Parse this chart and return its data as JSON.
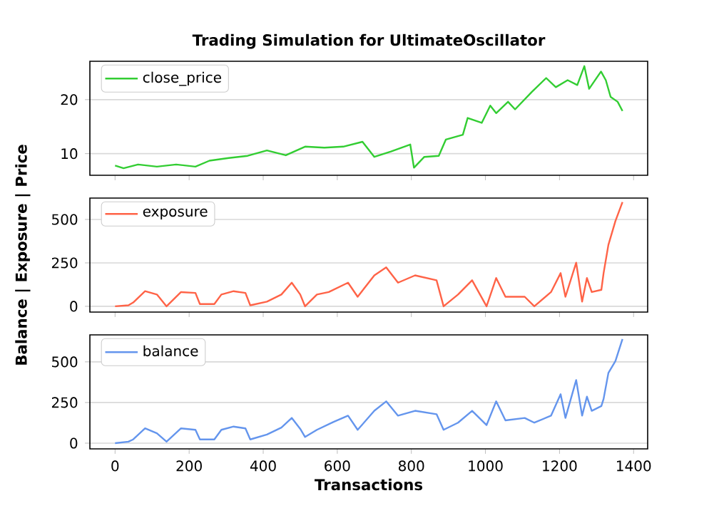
{
  "chart_data": [
    {
      "type": "line",
      "title": "Trading Simulation for UltimateOscillator",
      "x": [
        0,
        23,
        62,
        113,
        165,
        217,
        255,
        307,
        358,
        410,
        461,
        513,
        565,
        616,
        668,
        700,
        745,
        797,
        807,
        835,
        874,
        893,
        939,
        952,
        990,
        1013,
        1029,
        1061,
        1080,
        1125,
        1164,
        1190,
        1222,
        1248,
        1267,
        1280,
        1312,
        1325,
        1338,
        1357,
        1370
      ],
      "series": [
        {
          "name": "close_price",
          "color": "#32cd32",
          "values": [
            7.8,
            7.3,
            8.0,
            7.6,
            8.0,
            7.6,
            8.7,
            9.2,
            9.6,
            10.6,
            9.7,
            11.3,
            11.1,
            11.3,
            12.2,
            9.4,
            10.4,
            11.7,
            7.4,
            9.4,
            9.6,
            12.6,
            13.5,
            16.6,
            15.7,
            18.9,
            17.5,
            19.6,
            18.2,
            21.4,
            24.0,
            22.3,
            23.6,
            22.7,
            26.2,
            22.0,
            25.2,
            23.6,
            20.5,
            19.6,
            17.9
          ]
        }
      ],
      "xlim": [
        -68,
        1438
      ],
      "ylim": [
        6,
        27.1
      ],
      "xticks": [
        0,
        200,
        400,
        600,
        800,
        1000,
        1200,
        1400
      ],
      "yticks": [
        10,
        20
      ],
      "grid": "y",
      "legend": "top left",
      "tick_labels": "y"
    },
    {
      "type": "line",
      "ylabel": "Balance | Exposure | Price",
      "x": [
        0,
        36,
        49,
        81,
        113,
        139,
        178,
        217,
        229,
        268,
        287,
        320,
        352,
        365,
        410,
        449,
        477,
        500,
        513,
        545,
        577,
        629,
        655,
        700,
        732,
        764,
        810,
        868,
        887,
        926,
        964,
        1003,
        1029,
        1054,
        1106,
        1132,
        1177,
        1203,
        1216,
        1245,
        1261,
        1274,
        1287,
        1313,
        1319,
        1332,
        1351,
        1370
      ],
      "series": [
        {
          "name": "exposure",
          "color": "#ff6347",
          "values": [
            0,
            6,
            22,
            87,
            68,
            0,
            82,
            77,
            13,
            13,
            68,
            87,
            77,
            6,
            27,
            68,
            136,
            68,
            0,
            68,
            82,
            136,
            55,
            178,
            224,
            136,
            178,
            150,
            0,
            68,
            150,
            0,
            163,
            55,
            55,
            0,
            82,
            191,
            55,
            251,
            27,
            163,
            82,
            95,
            191,
            354,
            491,
            600
          ]
        }
      ],
      "xlim": [
        -68,
        1438
      ],
      "ylim": [
        -33,
        623
      ],
      "xticks": [
        0,
        200,
        400,
        600,
        800,
        1000,
        1200,
        1400
      ],
      "yticks": [
        0,
        250,
        500
      ],
      "grid": "y",
      "legend": "top left",
      "tick_labels": "y"
    },
    {
      "type": "line",
      "xlabel": "Transactions",
      "x": [
        0,
        36,
        49,
        81,
        113,
        139,
        178,
        217,
        229,
        268,
        287,
        320,
        352,
        365,
        410,
        449,
        477,
        500,
        513,
        545,
        590,
        629,
        655,
        700,
        732,
        764,
        810,
        868,
        887,
        926,
        964,
        1003,
        1029,
        1054,
        1106,
        1132,
        1177,
        1203,
        1216,
        1245,
        1261,
        1274,
        1287,
        1313,
        1319,
        1332,
        1351,
        1370
      ],
      "series": [
        {
          "name": "balance",
          "color": "#6495ed",
          "values": [
            0,
            9,
            23,
            91,
            61,
            9,
            91,
            82,
            23,
            23,
            82,
            102,
            91,
            23,
            53,
            96,
            155,
            88,
            38,
            82,
            131,
            169,
            82,
            199,
            257,
            169,
            199,
            178,
            82,
            126,
            199,
            111,
            257,
            140,
            155,
            126,
            169,
            301,
            155,
            388,
            169,
            286,
            199,
            228,
            272,
            432,
            505,
            640
          ]
        }
      ],
      "xlim": [
        -68,
        1438
      ],
      "ylim": [
        -35,
        666
      ],
      "xticks": [
        0,
        200,
        400,
        600,
        800,
        1000,
        1200,
        1400
      ],
      "yticks": [
        0,
        250,
        500
      ],
      "grid": "y",
      "legend": "top left"
    }
  ]
}
